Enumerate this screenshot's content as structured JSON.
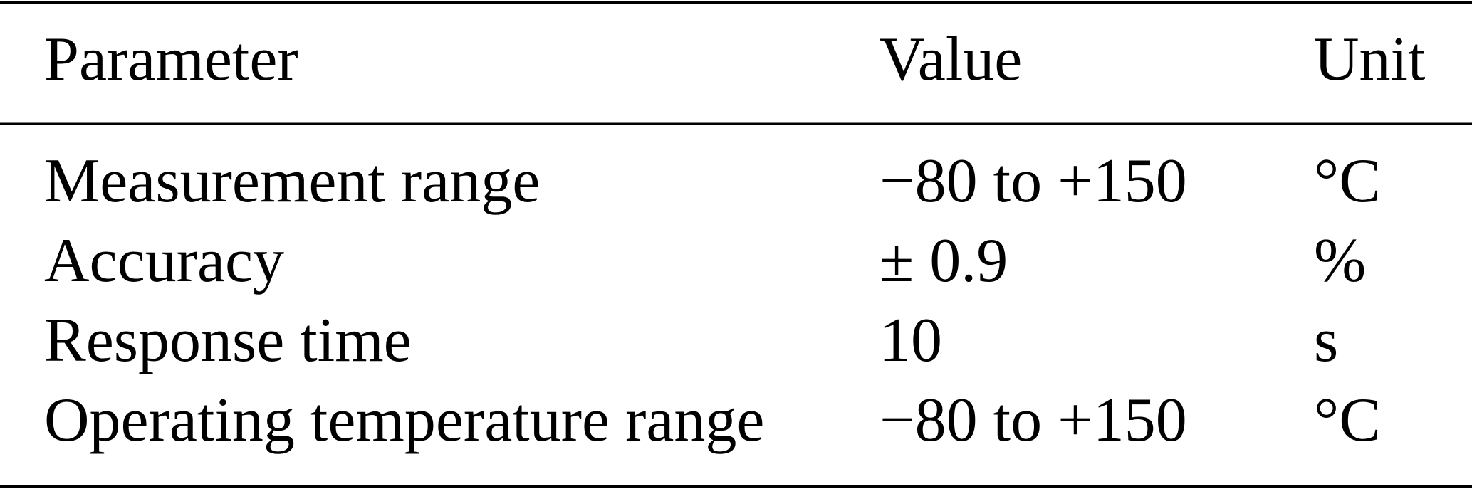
{
  "table": {
    "header": [
      "Parameter",
      "Value",
      "Unit"
    ],
    "rows": [
      [
        "Measurement range",
        "−80 to +150",
        "°C"
      ],
      [
        "Accuracy",
        "± 0.9",
        "%"
      ],
      [
        "Response time",
        "10",
        "s"
      ],
      [
        "Operating temperature range",
        "−80 to +150",
        "°C"
      ]
    ]
  }
}
